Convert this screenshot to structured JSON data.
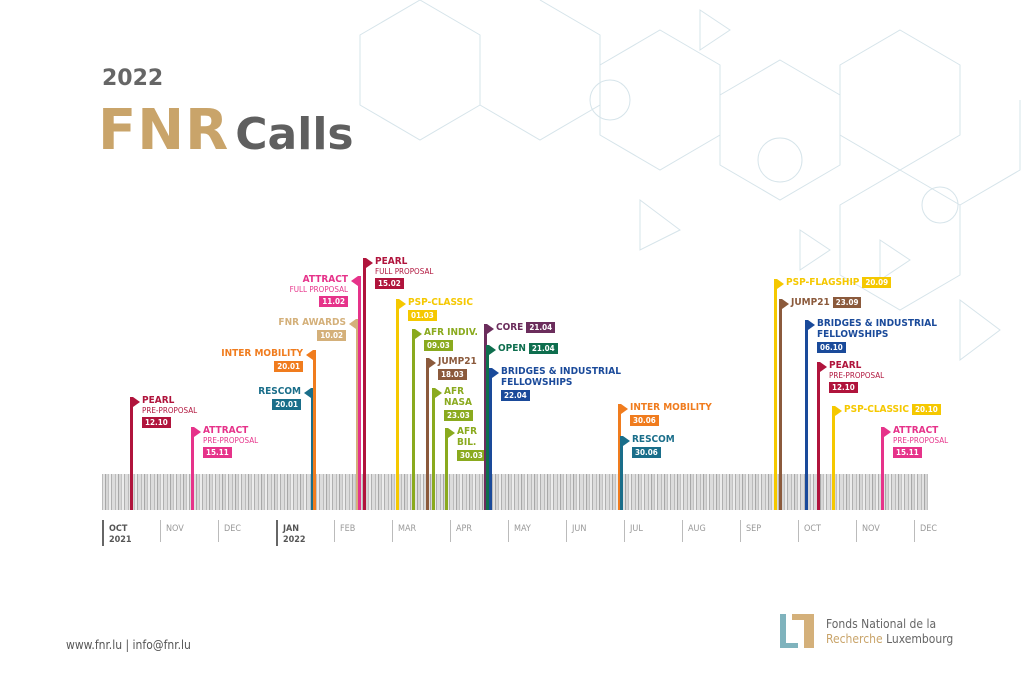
{
  "header": {
    "year": "2022",
    "title_fnr": "FNR",
    "title_calls": "Calls"
  },
  "colors": {
    "crimson": "#b0143c",
    "pink": "#e6338a",
    "teal": "#1a6e8a",
    "orange": "#f07c1e",
    "tan": "#d4b07a",
    "yellow": "#f5c800",
    "green": "#8aaa1e",
    "brown": "#8b5a3c",
    "purple": "#6b2d5c",
    "darkgreen": "#0e6e4e",
    "blue": "#1a4a9a"
  },
  "timeline": {
    "months": [
      {
        "label": "OCT",
        "year": "2021"
      },
      {
        "label": "NOV"
      },
      {
        "label": "DEC"
      },
      {
        "label": "JAN",
        "year": "2022"
      },
      {
        "label": "FEB"
      },
      {
        "label": "MAR"
      },
      {
        "label": "APR"
      },
      {
        "label": "MAY"
      },
      {
        "label": "JUN"
      },
      {
        "label": "JUL"
      },
      {
        "label": "AUG"
      },
      {
        "label": "SEP"
      },
      {
        "label": "OCT"
      },
      {
        "label": "NOV"
      },
      {
        "label": "DEC"
      }
    ]
  },
  "calls": [
    {
      "name": "PEARL",
      "sub": "PRE-PROPOSAL",
      "date": "12.10",
      "color": "crimson"
    },
    {
      "name": "ATTRACT",
      "sub": "PRE-PROPOSAL",
      "date": "15.11",
      "color": "pink"
    },
    {
      "name": "RESCOM",
      "date": "20.01",
      "color": "teal"
    },
    {
      "name": "INTER MOBILITY",
      "date": "20.01",
      "color": "orange"
    },
    {
      "name": "FNR AWARDS",
      "date": "10.02",
      "color": "tan"
    },
    {
      "name": "ATTRACT",
      "sub": "FULL PROPOSAL",
      "date": "11.02",
      "color": "pink"
    },
    {
      "name": "PEARL",
      "sub": "FULL PROPOSAL",
      "date": "15.02",
      "color": "crimson"
    },
    {
      "name": "PSP-CLASSIC",
      "date": "01.03",
      "color": "yellow"
    },
    {
      "name": "AFR INDIV.",
      "date": "09.03",
      "color": "green"
    },
    {
      "name": "JUMP21",
      "date": "18.03",
      "color": "brown"
    },
    {
      "name": "AFR NASA",
      "date": "23.03",
      "color": "green"
    },
    {
      "name": "AFR BIL.",
      "date": "30.03",
      "color": "green"
    },
    {
      "name": "CORE",
      "date": "21.04",
      "color": "purple"
    },
    {
      "name": "OPEN",
      "date": "21.04",
      "color": "darkgreen"
    },
    {
      "name": "BRIDGES & INDUSTRIAL FELLOWSHIPS",
      "date": "22.04",
      "color": "blue"
    },
    {
      "name": "INTER MOBILITY",
      "date": "30.06",
      "color": "orange"
    },
    {
      "name": "RESCOM",
      "date": "30.06",
      "color": "teal"
    },
    {
      "name": "PSP-FLAGSHIP",
      "date": "20.09",
      "color": "yellow"
    },
    {
      "name": "JUMP21",
      "date": "23.09",
      "color": "brown"
    },
    {
      "name": "BRIDGES & INDUSTRIAL FELLOWSHIPS",
      "date": "06.10",
      "color": "blue"
    },
    {
      "name": "PEARL",
      "sub": "PRE-PROPOSAL",
      "date": "12.10",
      "color": "crimson"
    },
    {
      "name": "PSP-CLASSIC",
      "date": "20.10",
      "color": "yellow"
    },
    {
      "name": "ATTRACT",
      "sub": "PRE-PROPOSAL",
      "date": "15.11",
      "color": "pink"
    }
  ],
  "footer": {
    "contact": "www.fnr.lu | info@fnr.lu",
    "org_line1": "Fonds National de la",
    "org_line2a": "Recherche",
    "org_line2b": "Luxembourg"
  }
}
